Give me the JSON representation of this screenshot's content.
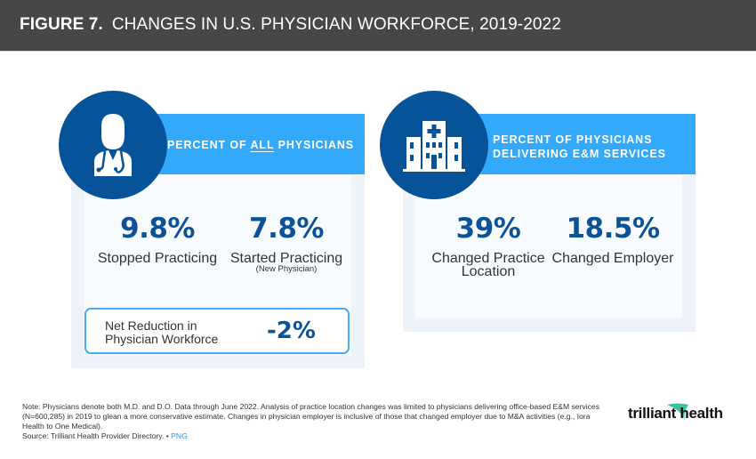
{
  "header": {
    "figure_label": "FIGURE 7.",
    "title": "CHANGES IN U.S. PHYSICIAN WORKFORCE, 2019-2022"
  },
  "left_panel": {
    "icon": "doctor-icon",
    "banner_prefix": "PERCENT OF ",
    "banner_emphasis": "ALL",
    "banner_suffix": " PHYSICIANS",
    "stats": [
      {
        "value": "9.8%",
        "label": "Stopped Practicing",
        "sublabel": ""
      },
      {
        "value": "7.8%",
        "label": "Started Practicing",
        "sublabel": "(New Physician)"
      }
    ],
    "net": {
      "label_line1": "Net Reduction in",
      "label_line2": "Physician Workforce",
      "value": "-2%"
    }
  },
  "right_panel": {
    "icon": "hospital-icon",
    "banner_line1": "PERCENT OF PHYSICIANS",
    "banner_line2": "DELIVERING E&M SERVICES",
    "stats": [
      {
        "value": "39%",
        "label_line1": "Changed Practice",
        "label_line2": "Location"
      },
      {
        "value": "18.5%",
        "label_line1": "Changed Employer",
        "label_line2": ""
      }
    ]
  },
  "footer": {
    "note": "Note: Physicians denote both M.D. and D.O. Data through June 2022. Analysis of practice location changes was limited to physicians delivering office-based E&M services (N=600,285) in 2019 to glean a more conservative estimate. Changes in physician employer is inclusive of those that changed employer due to M&A activities (e.g., Iora Health to One Medical).",
    "source": "Source: Trilliant Health Provider Directory.",
    "separator": " • ",
    "png_link": "PNG",
    "logo_text": "trilliant health"
  },
  "colors": {
    "header_bg": "#474747",
    "banner": "#33a9fb",
    "circle": "#07539a",
    "value_text": "#0b5297",
    "panel_bg": "#eef3f9",
    "logo_accent": "#3dbf9a"
  }
}
